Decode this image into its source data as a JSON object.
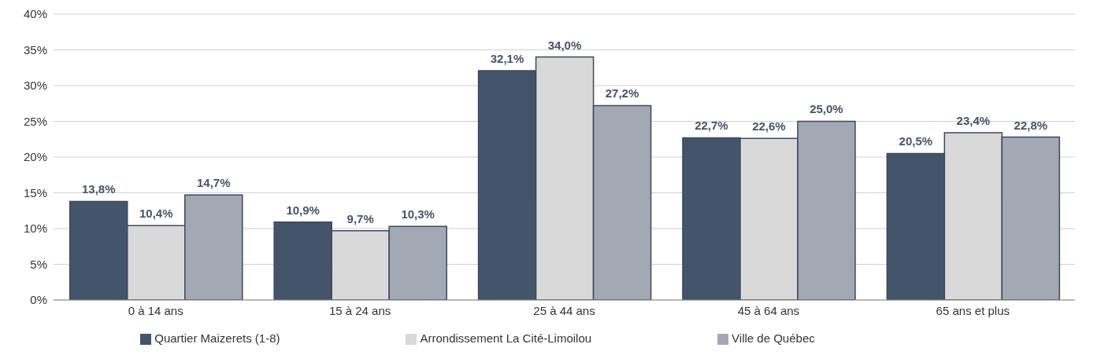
{
  "chart_data": {
    "type": "bar",
    "categories": [
      "0 à 14 ans",
      "15 à 24 ans",
      "25 à 44 ans",
      "45 à 64 ans",
      "65 ans et plus"
    ],
    "series": [
      {
        "name": "Quartier Maizerets (1-8)",
        "color": "#44546a",
        "values": [
          13.8,
          10.9,
          32.1,
          22.7,
          20.5
        ],
        "value_labels": [
          "13,8%",
          "10,9%",
          "32,1%",
          "22,7%",
          "20,5%"
        ]
      },
      {
        "name": "Arrondissement La Cité-Limoilou",
        "color": "#d9d9d9",
        "values": [
          10.4,
          9.7,
          34.0,
          22.6,
          23.4
        ],
        "value_labels": [
          "10,4%",
          "9,7%",
          "34,0%",
          "22,6%",
          "23,4%"
        ]
      },
      {
        "name": "Ville de Québec",
        "color": "#a2a9b4",
        "values": [
          14.7,
          10.3,
          27.2,
          25.0,
          22.8
        ],
        "value_labels": [
          "14,7%",
          "10,3%",
          "27,2%",
          "25,0%",
          "22,8%"
        ]
      }
    ],
    "ylim": [
      0,
      40
    ],
    "yticks": [
      {
        "value": 0,
        "label": "0%"
      },
      {
        "value": 5,
        "label": "5%"
      },
      {
        "value": 10,
        "label": "10%"
      },
      {
        "value": 15,
        "label": "15%"
      },
      {
        "value": 20,
        "label": "20%"
      },
      {
        "value": 25,
        "label": "25%"
      },
      {
        "value": 30,
        "label": "30%"
      },
      {
        "value": 35,
        "label": "35%"
      },
      {
        "value": 40,
        "label": "40%"
      }
    ],
    "grid": "y",
    "legend": "bottom"
  }
}
